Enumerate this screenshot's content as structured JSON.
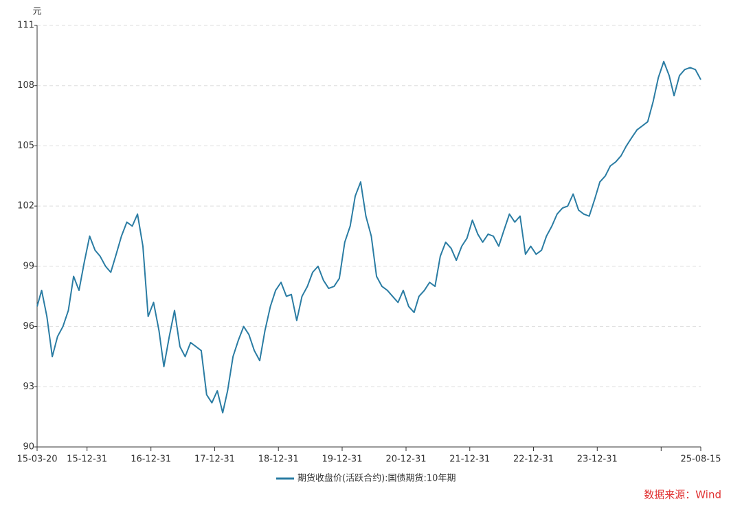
{
  "chart_data": {
    "type": "line",
    "y_unit": "元",
    "x": [
      "15-03-20",
      "15-04-15",
      "15-05-15",
      "15-06-15",
      "15-07-15",
      "15-08-15",
      "15-09-15",
      "15-10-15",
      "15-11-15",
      "15-12-15",
      "16-01-15",
      "16-02-15",
      "16-03-15",
      "16-04-15",
      "16-05-15",
      "16-06-15",
      "16-07-15",
      "16-08-15",
      "16-09-15",
      "16-10-15",
      "16-11-15",
      "16-12-15",
      "17-01-15",
      "17-02-15",
      "17-03-15",
      "17-04-15",
      "17-05-15",
      "17-06-15",
      "17-07-15",
      "17-08-15",
      "17-09-15",
      "17-10-15",
      "17-11-15",
      "17-12-15",
      "18-01-15",
      "18-02-15",
      "18-03-15",
      "18-04-15",
      "18-05-15",
      "18-06-15",
      "18-07-15",
      "18-08-15",
      "18-09-15",
      "18-10-15",
      "18-11-15",
      "18-12-15",
      "19-01-15",
      "19-02-15",
      "19-03-15",
      "19-04-15",
      "19-05-15",
      "19-06-15",
      "19-07-15",
      "19-08-15",
      "19-09-15",
      "19-10-15",
      "19-11-15",
      "19-12-15",
      "20-01-15",
      "20-02-15",
      "20-03-15",
      "20-04-15",
      "20-05-15",
      "20-06-15",
      "20-07-15",
      "20-08-15",
      "20-09-15",
      "20-10-15",
      "20-11-15",
      "20-12-15",
      "21-01-15",
      "21-02-15",
      "21-03-15",
      "21-04-15",
      "21-05-15",
      "21-06-15",
      "21-07-15",
      "21-08-15",
      "21-09-15",
      "21-10-15",
      "21-11-15",
      "21-12-15",
      "22-01-15",
      "22-02-15",
      "22-03-15",
      "22-04-15",
      "22-05-15",
      "22-06-15",
      "22-07-15",
      "22-08-15",
      "22-09-15",
      "22-10-15",
      "22-11-15",
      "22-12-15",
      "23-01-15",
      "23-02-15",
      "23-03-15",
      "23-04-15",
      "23-05-15",
      "23-06-15",
      "23-07-15",
      "23-08-15",
      "23-09-15",
      "23-10-15",
      "23-11-15",
      "23-12-15",
      "24-01-15",
      "24-02-15",
      "24-03-15",
      "24-04-15",
      "24-05-15",
      "24-06-15",
      "24-07-15",
      "24-08-15",
      "24-09-15",
      "24-10-15",
      "24-11-15",
      "24-12-15",
      "25-01-15",
      "25-02-15",
      "25-03-15",
      "25-04-15",
      "25-05-15",
      "25-06-15",
      "25-07-15",
      "25-08-15"
    ],
    "series": [
      {
        "name": "期货收盘价(活跃合约):国债期货:10年期",
        "color": "#2a7ca3",
        "values": [
          97,
          97.8,
          96.5,
          94.5,
          95.5,
          96.0,
          96.8,
          98.5,
          97.8,
          99.2,
          100.5,
          99.8,
          99.5,
          99.0,
          98.7,
          99.6,
          100.5,
          101.2,
          101.0,
          101.6,
          100.0,
          96.5,
          97.2,
          95.8,
          94.0,
          95.5,
          96.8,
          95.0,
          94.5,
          95.2,
          95.0,
          94.8,
          92.6,
          92.2,
          92.8,
          91.7,
          92.8,
          94.5,
          95.3,
          96.0,
          95.6,
          94.8,
          94.3,
          95.8,
          97.0,
          97.8,
          98.2,
          97.5,
          97.6,
          96.3,
          97.5,
          98.0,
          98.7,
          99.0,
          98.3,
          97.9,
          98.0,
          98.4,
          100.2,
          101.0,
          102.5,
          103.2,
          101.5,
          100.5,
          98.5,
          98.0,
          97.8,
          97.5,
          97.2,
          97.8,
          97.0,
          96.7,
          97.5,
          97.8,
          98.2,
          98.0,
          99.5,
          100.2,
          99.9,
          99.3,
          100.0,
          100.4,
          101.3,
          100.6,
          100.2,
          100.6,
          100.5,
          100.0,
          100.8,
          101.6,
          101.2,
          101.5,
          99.6,
          100.0,
          99.6,
          99.8,
          100.5,
          101.0,
          101.6,
          101.9,
          102.0,
          102.6,
          101.8,
          101.6,
          101.5,
          102.3,
          103.2,
          103.5,
          104.0,
          104.2,
          104.5,
          105.0,
          105.4,
          105.8,
          106.0,
          106.2,
          107.2,
          108.4,
          109.2,
          108.5,
          107.5,
          108.5,
          108.8,
          108.9,
          108.8,
          108.3
        ]
      }
    ],
    "xlim": [
      "15-03-20",
      "25-08-15"
    ],
    "xticks": [
      "15-03-20",
      "15-12-31",
      "16-12-31",
      "17-12-31",
      "18-12-31",
      "19-12-31",
      "20-12-31",
      "21-12-31",
      "22-12-31",
      "23-12-31",
      {
        "value": "24-12-31",
        "label": null
      },
      "25-08-15"
    ],
    "ylim": [
      90,
      111
    ],
    "yticks": [
      90,
      93,
      96,
      99,
      102,
      105,
      108,
      111
    ],
    "grid": true,
    "legend": "bottom",
    "source": "数据来源：Wind"
  }
}
